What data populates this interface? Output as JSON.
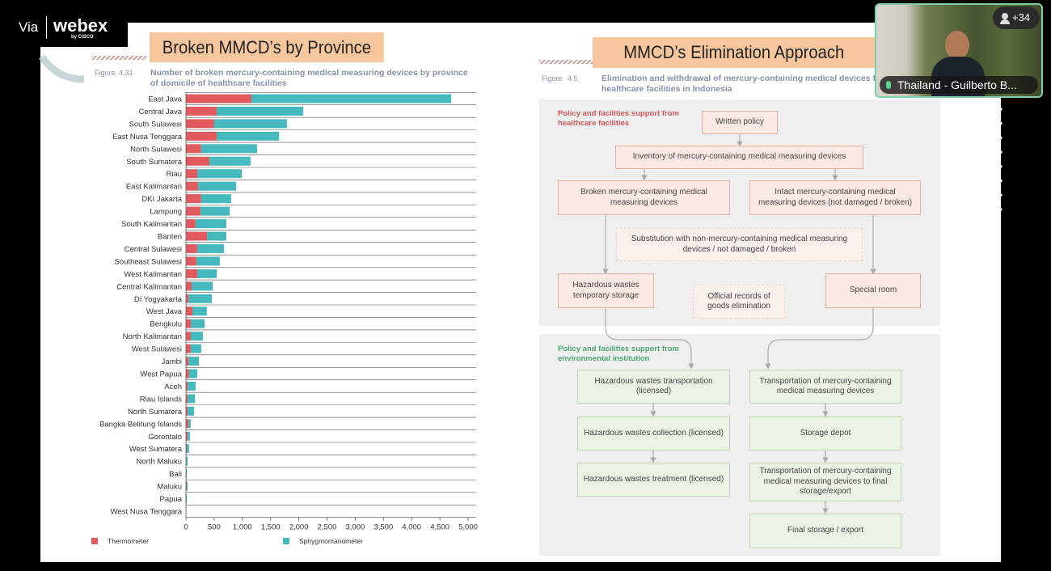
{
  "app": {
    "via": "Via",
    "brand": "webex",
    "brand_sub": "by CISCO",
    "participant_count": "+34",
    "speaker": "Thailand - Guilberto B..."
  },
  "chart_data": {
    "type": "bar",
    "orientation": "horizontal",
    "stacked": true,
    "header": "Broken MMCD’s by Province",
    "figure_label": "Figure",
    "figure_number": "4.31",
    "title": "Number of broken mercury-containing medical measuring devices by province of domicile of healthcare facilities",
    "categories": [
      "East Java",
      "Central Java",
      "South Sulawesi",
      "East Nusa Tenggara",
      "North Sulawesi",
      "South Sumatera",
      "Riau",
      "East Kalimantan",
      "DKI Jakarta",
      "Lampung",
      "South Kalimantan",
      "Banten",
      "Central Sulawesi",
      "Southeast Sulawesi",
      "West Kalimantan",
      "Central Kalimantan",
      "DI Yogyakarta",
      "West Java",
      "Bengkulu",
      "North Kalimantan",
      "West Sulawesi",
      "Jambi",
      "West Papua",
      "Aceh",
      "Riau Islands",
      "North Sumatera",
      "Bangka Belitung Islands",
      "Gorontalo",
      "West Sumatera",
      "North Maluku",
      "Bali",
      "Maluku",
      "Papua",
      "West Nusa Tenggara"
    ],
    "series": [
      {
        "name": "Thermometer",
        "color": "#e05a5e",
        "values": [
          1160,
          545,
          500,
          545,
          270,
          415,
          200,
          215,
          270,
          260,
          170,
          375,
          200,
          185,
          200,
          100,
          45,
          115,
          85,
          85,
          85,
          45,
          55,
          30,
          30,
          30,
          45,
          30,
          15,
          5,
          0,
          15,
          0,
          0
        ]
      },
      {
        "name": "Sphygmomanometer",
        "color": "#45b9bd",
        "values": [
          3540,
          1535,
          1290,
          1105,
          990,
          730,
          790,
          675,
          530,
          515,
          545,
          340,
          475,
          415,
          345,
          375,
          415,
          255,
          245,
          215,
          185,
          185,
          145,
          140,
          130,
          115,
          40,
          40,
          40,
          25,
          15,
          15,
          15,
          5
        ]
      }
    ],
    "xlim": [
      0,
      5000
    ],
    "xticks": [
      0,
      500,
      {
        "value": 1000,
        "label": "1,000"
      },
      {
        "value": 1500,
        "label": "1,500"
      },
      {
        "value": 2000,
        "label": "2,000"
      },
      {
        "value": 2500,
        "label": "2,500"
      },
      {
        "value": 3000,
        "label": "3,000"
      },
      {
        "value": 3500,
        "label": "3,500"
      },
      {
        "value": 4000,
        "label": "4,000"
      },
      {
        "value": 4500,
        "label": "4,500"
      },
      {
        "value": 5000,
        "label": "5,000"
      }
    ]
  },
  "diagram": {
    "header": "MMCD’s Elimination Approach",
    "figure_label": "Figure",
    "figure_number": "4.5",
    "title": "Elimination and withdrawal of mercury-containing medical devices from healthcare facilities in Indonesia",
    "sections": [
      {
        "label": "Policy and facilities support from healthcare facilities"
      },
      {
        "label": "Policy and facilities support from environmental institution"
      }
    ],
    "nodes": [
      {
        "label": "Written policy"
      },
      {
        "label": "Inventory of mercury-containing medical measuring devices"
      },
      {
        "label": "Broken mercury-containing medical measuring devices"
      },
      {
        "label": "Intact mercury-containing medical measuring devices (not damaged / broken)"
      },
      {
        "label": "Substitution with non-mercury-containing medical measuring devices / not damaged / broken"
      },
      {
        "label": "Hazardous wastes temporary storage"
      },
      {
        "label": "Official records of goods elimination"
      },
      {
        "label": "Special room"
      },
      {
        "label": "Hazardous wastes transportation (licensed)"
      },
      {
        "label": "Transportation of mercury-containing medical measuring devices"
      },
      {
        "label": "Hazardous wastes collection (licensed)"
      },
      {
        "label": "Storage depot"
      },
      {
        "label": "Hazardous wastes treatment (licensed)"
      },
      {
        "label": "Transportation of mercury-containing medical measuring devices to final storage/export"
      },
      {
        "label": "Final storage / export"
      }
    ]
  }
}
